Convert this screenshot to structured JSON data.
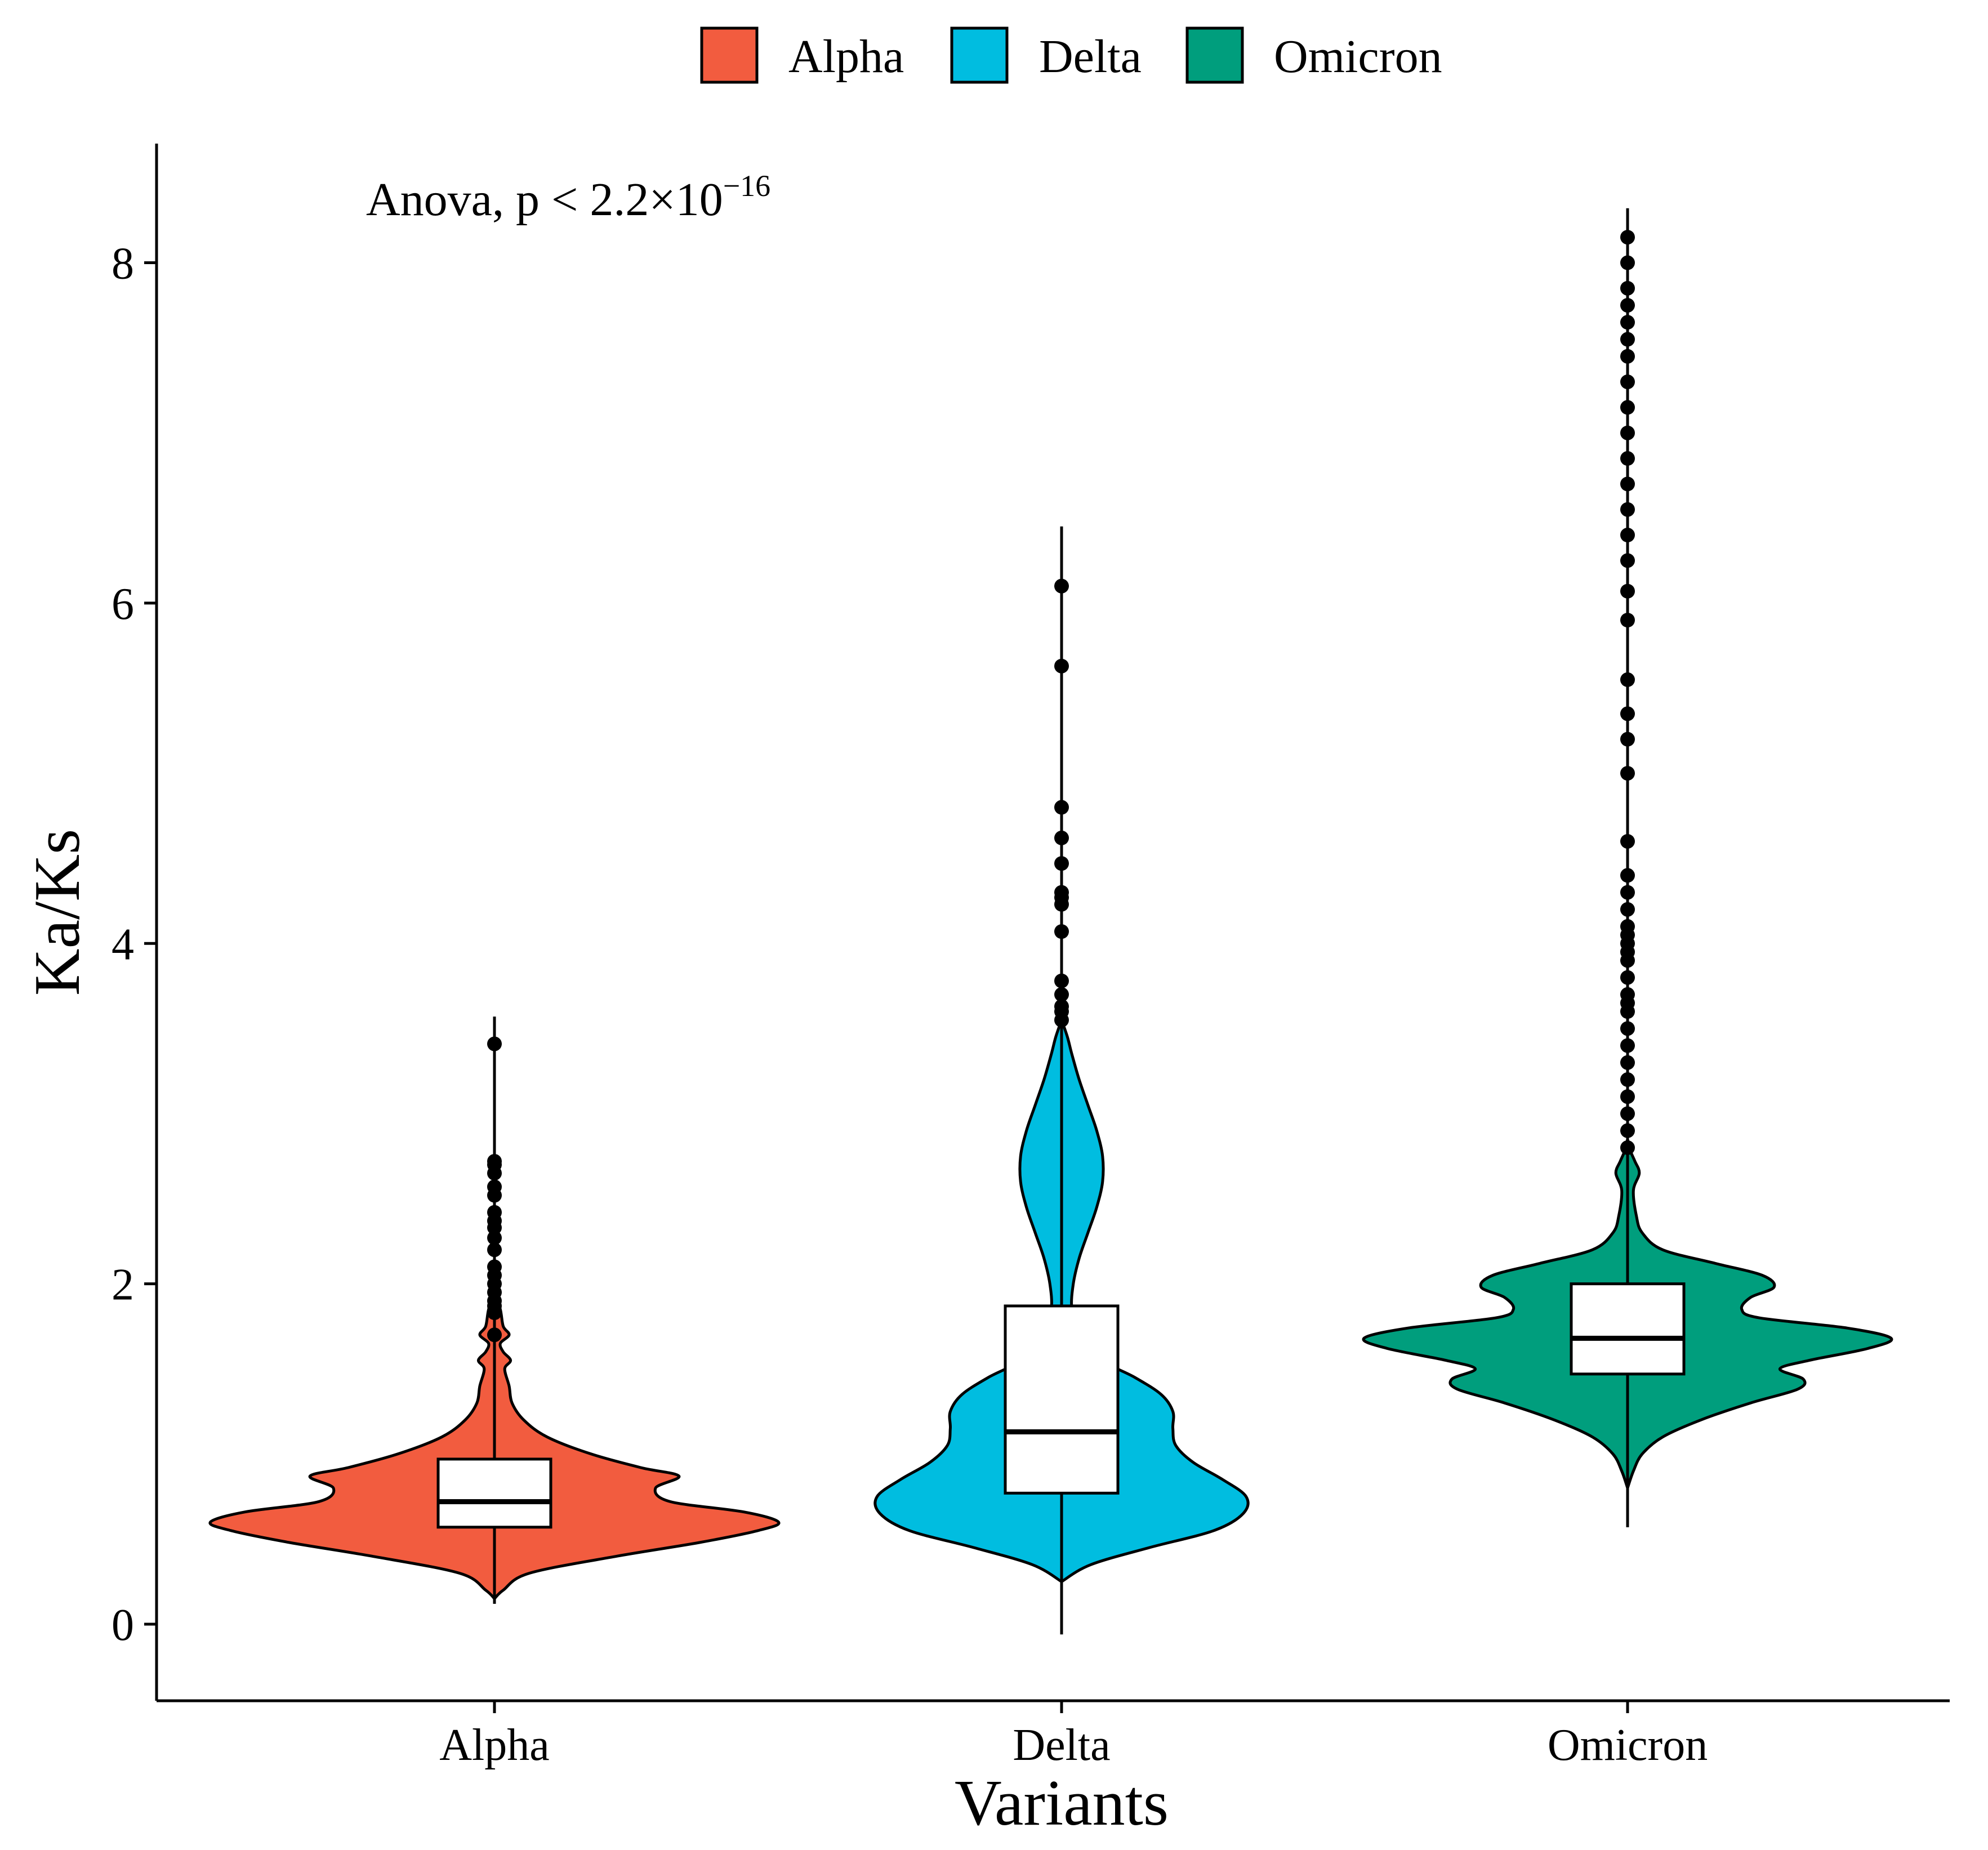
{
  "chart_data": {
    "type": "violin",
    "title": "",
    "xlabel": "Variants",
    "ylabel": "Ka/Ks",
    "ylim": [
      -0.45,
      8.7
    ],
    "yticks": [
      0,
      2,
      4,
      6,
      8
    ],
    "grid": false,
    "legend": {
      "position": "top",
      "entries": [
        {
          "name": "Alpha",
          "color": "#F25C3F"
        },
        {
          "name": "Delta",
          "color": "#00BDE0"
        },
        {
          "name": "Omicron",
          "color": "#009E7D"
        }
      ]
    },
    "annotation": {
      "prefix": "Anova, p < 2.2×10",
      "exponent": "−16",
      "text": "Anova, p < 2.2×10^-16"
    },
    "categories": [
      "Alpha",
      "Delta",
      "Omicron"
    ],
    "series": [
      {
        "name": "Alpha",
        "color": "#F25C3F",
        "violin_min": 0.15,
        "violin_max": 1.95,
        "whisker_min": 0.12,
        "whisker_max": 3.57,
        "box": {
          "q1": 0.57,
          "median": 0.72,
          "q3": 0.97
        },
        "density": [
          [
            0.15,
            0.0
          ],
          [
            0.2,
            0.03
          ],
          [
            0.3,
            0.12
          ],
          [
            0.4,
            0.42
          ],
          [
            0.48,
            0.7
          ],
          [
            0.55,
            0.9
          ],
          [
            0.6,
            0.97
          ],
          [
            0.66,
            0.85
          ],
          [
            0.72,
            0.6
          ],
          [
            0.8,
            0.55
          ],
          [
            0.87,
            0.63
          ],
          [
            0.92,
            0.5
          ],
          [
            1.0,
            0.33
          ],
          [
            1.1,
            0.18
          ],
          [
            1.2,
            0.1
          ],
          [
            1.3,
            0.06
          ],
          [
            1.4,
            0.05
          ],
          [
            1.5,
            0.035
          ],
          [
            1.55,
            0.055
          ],
          [
            1.6,
            0.03
          ],
          [
            1.65,
            0.02
          ],
          [
            1.7,
            0.05
          ],
          [
            1.75,
            0.03
          ],
          [
            1.85,
            0.02
          ],
          [
            1.95,
            0.0
          ]
        ],
        "outliers": [
          1.7,
          1.83,
          1.87,
          1.9,
          1.95,
          2.0,
          2.05,
          2.1,
          2.2,
          2.27,
          2.33,
          2.37,
          2.42,
          2.52,
          2.57,
          2.65,
          2.7,
          2.72,
          3.41
        ]
      },
      {
        "name": "Delta",
        "color": "#00BDE0",
        "violin_min": 0.25,
        "violin_max": 3.55,
        "whisker_min": -0.06,
        "whisker_max": 6.45,
        "box": {
          "q1": 0.77,
          "median": 1.13,
          "q3": 1.87
        },
        "density": [
          [
            0.25,
            0.0
          ],
          [
            0.35,
            0.1
          ],
          [
            0.45,
            0.3
          ],
          [
            0.55,
            0.52
          ],
          [
            0.65,
            0.62
          ],
          [
            0.75,
            0.63
          ],
          [
            0.85,
            0.55
          ],
          [
            0.95,
            0.45
          ],
          [
            1.05,
            0.39
          ],
          [
            1.15,
            0.38
          ],
          [
            1.25,
            0.38
          ],
          [
            1.35,
            0.34
          ],
          [
            1.45,
            0.25
          ],
          [
            1.55,
            0.14
          ],
          [
            1.7,
            0.06
          ],
          [
            1.85,
            0.035
          ],
          [
            2.0,
            0.04
          ],
          [
            2.15,
            0.06
          ],
          [
            2.3,
            0.09
          ],
          [
            2.45,
            0.12
          ],
          [
            2.6,
            0.14
          ],
          [
            2.75,
            0.14
          ],
          [
            2.9,
            0.12
          ],
          [
            3.05,
            0.09
          ],
          [
            3.2,
            0.06
          ],
          [
            3.35,
            0.035
          ],
          [
            3.45,
            0.02
          ],
          [
            3.55,
            0.0
          ]
        ],
        "outliers": [
          3.55,
          3.6,
          3.63,
          3.7,
          3.78,
          4.07,
          4.23,
          4.27,
          4.3,
          4.47,
          4.62,
          4.8,
          5.63,
          6.1
        ]
      },
      {
        "name": "Omicron",
        "color": "#009E7D",
        "violin_min": 0.8,
        "violin_max": 2.85,
        "whisker_min": 0.57,
        "whisker_max": 8.32,
        "box": {
          "q1": 1.47,
          "median": 1.68,
          "q3": 2.0
        },
        "density": [
          [
            0.8,
            0.0
          ],
          [
            0.9,
            0.02
          ],
          [
            1.0,
            0.05
          ],
          [
            1.1,
            0.12
          ],
          [
            1.2,
            0.25
          ],
          [
            1.3,
            0.42
          ],
          [
            1.38,
            0.58
          ],
          [
            1.44,
            0.6
          ],
          [
            1.5,
            0.52
          ],
          [
            1.55,
            0.62
          ],
          [
            1.62,
            0.82
          ],
          [
            1.68,
            0.9
          ],
          [
            1.74,
            0.75
          ],
          [
            1.8,
            0.45
          ],
          [
            1.85,
            0.39
          ],
          [
            1.92,
            0.42
          ],
          [
            1.98,
            0.5
          ],
          [
            2.05,
            0.46
          ],
          [
            2.12,
            0.3
          ],
          [
            2.2,
            0.12
          ],
          [
            2.3,
            0.05
          ],
          [
            2.4,
            0.03
          ],
          [
            2.55,
            0.02
          ],
          [
            2.65,
            0.04
          ],
          [
            2.72,
            0.025
          ],
          [
            2.78,
            0.01
          ],
          [
            2.85,
            0.0
          ]
        ],
        "outliers": [
          2.8,
          2.9,
          3.0,
          3.1,
          3.2,
          3.3,
          3.4,
          3.5,
          3.6,
          3.65,
          3.7,
          3.8,
          3.9,
          3.95,
          4.0,
          4.05,
          4.1,
          4.2,
          4.3,
          4.4,
          4.6,
          5.0,
          5.2,
          5.35,
          5.55,
          5.9,
          6.07,
          6.25,
          6.4,
          6.55,
          6.7,
          6.85,
          7.0,
          7.15,
          7.3,
          7.45,
          7.55,
          7.65,
          7.75,
          7.85,
          8.0,
          8.15
        ]
      }
    ]
  }
}
